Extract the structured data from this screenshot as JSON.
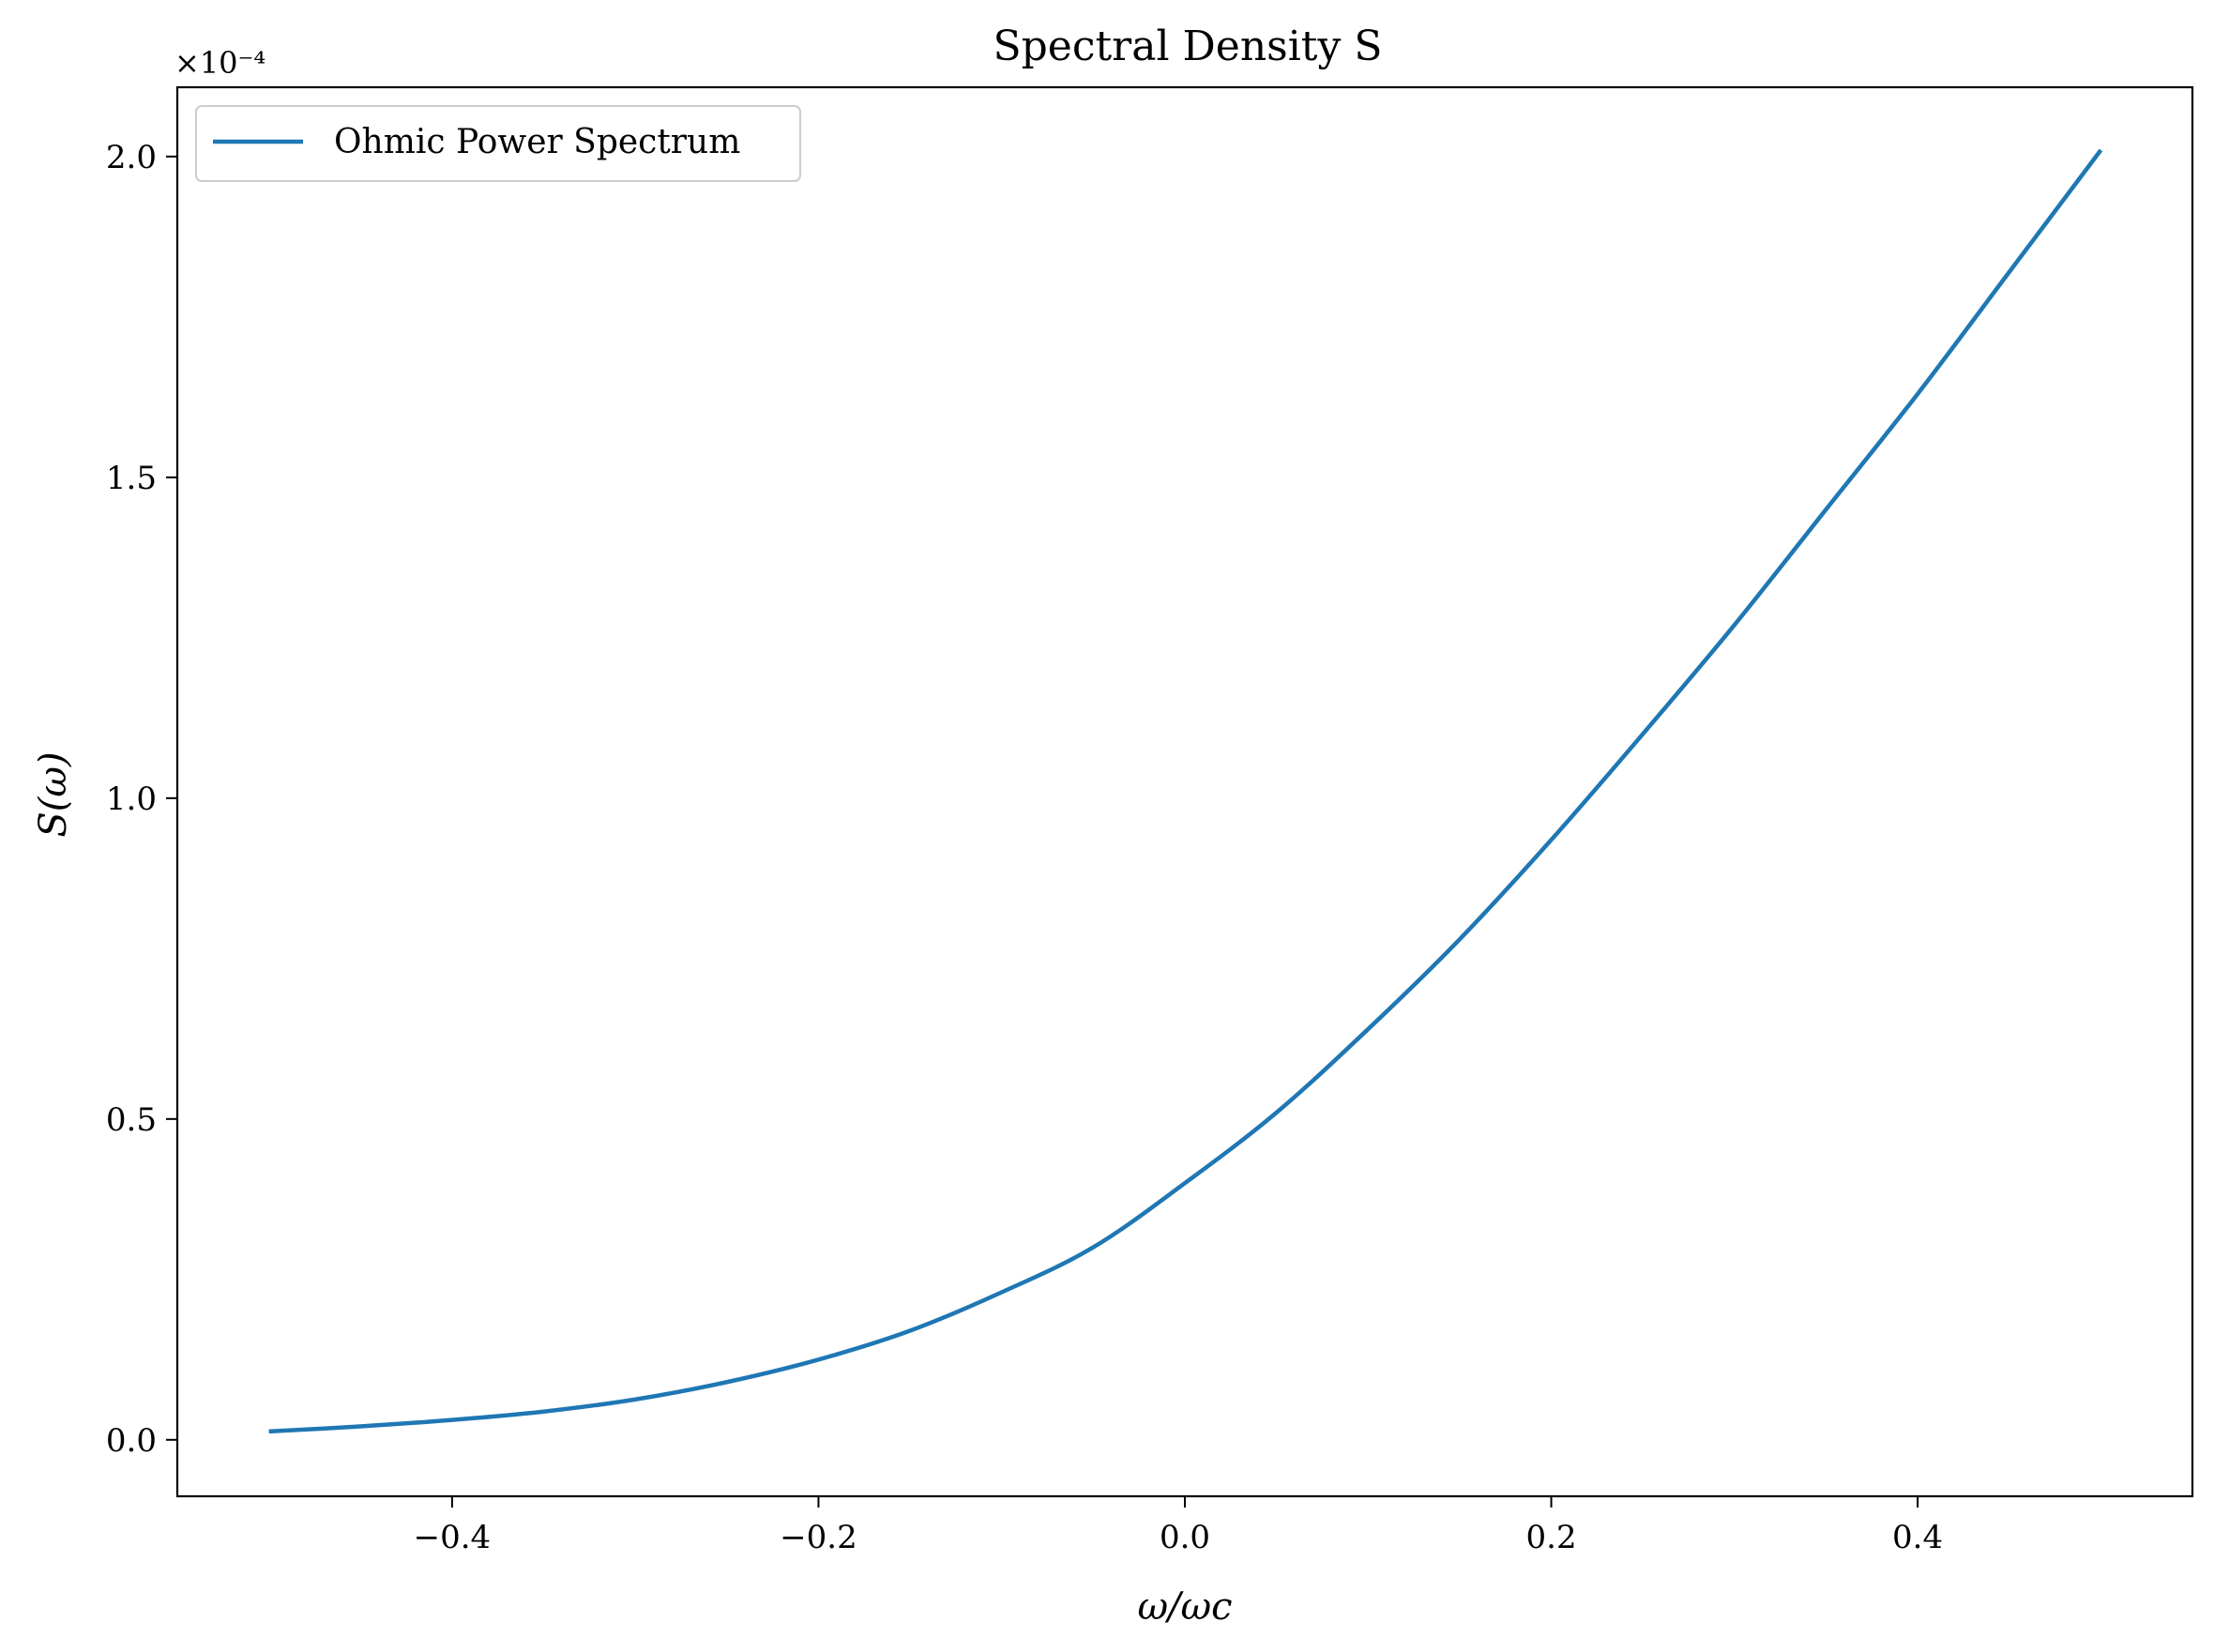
{
  "chart_data": {
    "type": "line",
    "title": "Spectral Density S",
    "xlabel": "ω/ωc",
    "ylabel": "S(ω)",
    "y_offset_label": "×10⁻⁴",
    "xlim": [
      -0.55,
      0.55
    ],
    "ylim": [
      -0.088,
      2.108
    ],
    "y_scale_factor": 0.0001,
    "xticks": [
      -0.4,
      -0.2,
      0.0,
      0.2,
      0.4
    ],
    "xtick_labels": [
      "−0.4",
      "−0.2",
      "0.0",
      "0.2",
      "0.4"
    ],
    "yticks": [
      0.0,
      0.5,
      1.0,
      1.5,
      2.0
    ],
    "ytick_labels": [
      "0.0",
      "0.5",
      "1.0",
      "1.5",
      "2.0"
    ],
    "grid": false,
    "legend_position": "top-left",
    "series": [
      {
        "name": "Ohmic Power Spectrum",
        "color": "#1f77b4",
        "x": [
          -0.5,
          -0.45,
          -0.4,
          -0.35,
          -0.3,
          -0.25,
          -0.2,
          -0.15,
          -0.1,
          -0.05,
          0.0,
          0.05,
          0.1,
          0.15,
          0.2,
          0.25,
          0.3,
          0.35,
          0.4,
          0.45,
          0.5
        ],
        "y": [
          0.013,
          0.021,
          0.031,
          0.044,
          0.063,
          0.09,
          0.125,
          0.17,
          0.23,
          0.3,
          0.4,
          0.51,
          0.64,
          0.78,
          0.935,
          1.1,
          1.27,
          1.45,
          1.63,
          1.82,
          2.01
        ]
      }
    ]
  }
}
